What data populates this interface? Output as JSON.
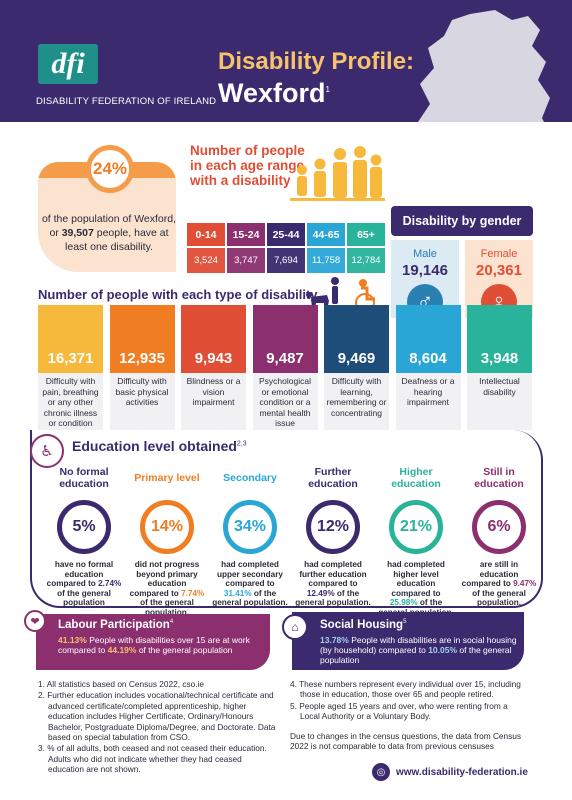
{
  "header": {
    "logo_text": "dfi",
    "org_name": "DISABILITY FEDERATION OF IRELAND",
    "title": "Disability Profile:",
    "county": "Wexford",
    "county_note": "1",
    "map_icon": "ireland-map-icon",
    "colors": {
      "header_bg": "#3b2a6e",
      "title": "#f6c26b",
      "highlight": "#e7a13c"
    }
  },
  "overall": {
    "percent": "24%",
    "text_pre": "of the population of Wexford, or ",
    "count": "39,507",
    "text_post": " people, have at least one disability."
  },
  "age": {
    "title": "Number of people in each age range with a disability",
    "icon": "family-figures-icon",
    "ranges": [
      {
        "label": "0-14",
        "value": "3,524",
        "color": "#e04e35"
      },
      {
        "label": "15-24",
        "value": "3,747",
        "color": "#8c2f6e"
      },
      {
        "label": "25-44",
        "value": "7,694",
        "color": "#3b2a6e"
      },
      {
        "label": "44-65",
        "value": "11,758",
        "color": "#2aa6d6"
      },
      {
        "label": "65+",
        "value": "12,784",
        "color": "#29b39b"
      }
    ]
  },
  "gender": {
    "title": "Disability by gender",
    "male_label": "Male",
    "male_value": "19,146",
    "male_icon": "male-symbol-icon",
    "female_label": "Female",
    "female_value": "20,361",
    "female_icon": "female-symbol-icon"
  },
  "types": {
    "title": "Number of people with each type of disability",
    "icons": "guide-dog-wheelchair-icons",
    "items": [
      {
        "value": "16,371",
        "label": "Difficulty with pain, breathing or any other chronic illness or condition",
        "color": "#f6b93b"
      },
      {
        "value": "12,935",
        "label": "Difficulty with basic physical activities",
        "color": "#f07d22"
      },
      {
        "value": "9,943",
        "label": "Blindness or a vision impairment",
        "color": "#e04e35"
      },
      {
        "value": "9,487",
        "label": "Psychological or emotional condition or a mental health issue",
        "color": "#8c2f6e"
      },
      {
        "value": "9,469",
        "label": "Difficulty with learning, remembering or concentrating",
        "color": "#1e4d7a"
      },
      {
        "value": "8,604",
        "label": "Deafness or a hearing impairment",
        "color": "#2aa6d6"
      },
      {
        "value": "3,948",
        "label": "Intellectual disability",
        "color": "#29b39b"
      }
    ]
  },
  "education": {
    "title": "Education level obtained",
    "title_note": "2,3",
    "icon": "wheelchair-icon",
    "levels": [
      {
        "head": "No formal education",
        "pct": "5%",
        "desc_a": "have no formal education compared to ",
        "compare": "2.74%",
        "desc_b": " of the general population",
        "color": "#3b2a6e",
        "head_color": "#3b2a6e"
      },
      {
        "head": "Primary level",
        "pct": "14%",
        "desc_a": "did not progress beyond primary education compared to ",
        "compare": "7.74%",
        "desc_b": " of the general population.",
        "color": "#f07d22",
        "head_color": "#f07d22"
      },
      {
        "head": "Secondary",
        "pct": "34%",
        "desc_a": "had completed upper secondary compared to ",
        "compare": "31.41%",
        "desc_b": " of the general population.",
        "color": "#2aa6d6",
        "head_color": "#2aa6d6"
      },
      {
        "head": "Further education",
        "pct": "12%",
        "desc_a": "had completed further education compared to ",
        "compare": "12.49%",
        "desc_b": " of the general population.",
        "color": "#3b2a6e",
        "head_color": "#3b2a6e"
      },
      {
        "head": "Higher education",
        "pct": "21%",
        "desc_a": "had completed higher level education compared to ",
        "compare": "25.98%",
        "desc_b": " of the general population.",
        "color": "#29b39b",
        "head_color": "#29b39b"
      },
      {
        "head": "Still in education",
        "pct": "6%",
        "desc_a": "are still in education compared to ",
        "compare": "9.47%",
        "desc_b": " of the general population.",
        "color": "#8c2f6e",
        "head_color": "#8c2f6e"
      }
    ]
  },
  "labour": {
    "title": "Labour Participation",
    "note": "4",
    "icon": "hands-heart-icon",
    "pct": "41.13%",
    "text_a": " People with disabilities over 15 are at work compared to ",
    "compare": "44.19%",
    "text_b": " of the general population"
  },
  "housing": {
    "title": "Social Housing",
    "note": "5",
    "icon": "house-building-icon",
    "pct": "13.78%",
    "text_a": " People with disabilities are in social housing (by household) compared to ",
    "compare": "10.05%",
    "text_b": " of the general population"
  },
  "notes": {
    "left": [
      "1. All statistics based on Census 2022, cso.ie",
      "2. Further education includes vocational/technical certificate and advanced certificate/completed apprenticeship, higher education includes Higher Certificate, Ordinary/Honours Bachelor, Postgraduate Diploma/Degree, and Doctorate. Data based on special tabulation from CSO.",
      "3. % of all adults, both ceased and not ceased their education. Adults who did not indicate whether they had ceased education are not shown."
    ],
    "right": [
      "4. These numbers represent every individual over 15, including those in education, those over 65 and people retired.",
      "5. People aged 15 years and over, who were renting from a Local Authority or a Voluntary Body."
    ],
    "extra": "Due to changes in the census questions, the data from Census 2022 is not comparable to data from previous censuses"
  },
  "footer": {
    "url": "www.disability-federation.ie",
    "icon": "www-globe-icon"
  }
}
